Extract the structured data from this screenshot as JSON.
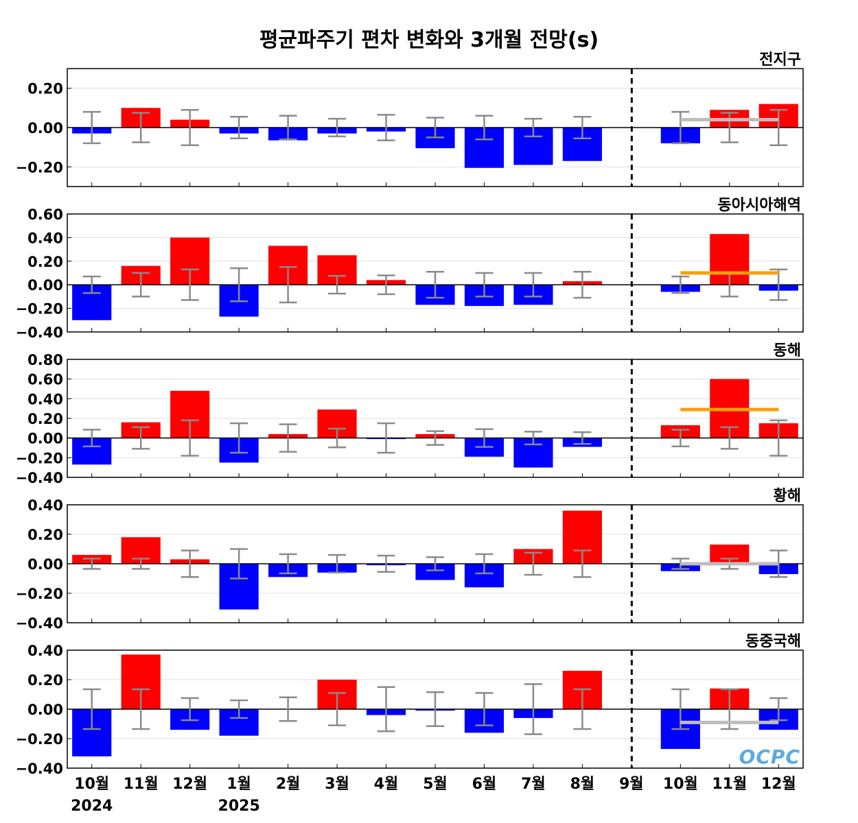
{
  "chart_data": {
    "type": "bar",
    "title": "평균파주기 편차 변화와 3개월 전망(s)",
    "categories": [
      "10월",
      "11월",
      "12월",
      "1월",
      "2월",
      "3월",
      "4월",
      "5월",
      "6월",
      "7월",
      "8월",
      "9월",
      "10월",
      "11월",
      "12월"
    ],
    "year_labels": [
      {
        "index": 0,
        "text": "2024"
      },
      {
        "index": 3,
        "text": "2025"
      }
    ],
    "forecast_divider_after_index": 11,
    "colors": {
      "positive": "#ff0000",
      "negative": "#0000ff",
      "errorbar": "#8a8a8a",
      "gray_line": "#bdbdbd",
      "orange_line": "#f5a010",
      "divider": "#000000"
    },
    "panels": [
      {
        "name": "전지구",
        "ylim": [
          -0.3,
          0.3
        ],
        "yticks": [
          0.2,
          0.0,
          -0.2
        ],
        "ytick_labels": [
          "0.20",
          "0.00",
          "−0.20"
        ],
        "values": [
          -0.03,
          0.1,
          0.04,
          -0.03,
          -0.065,
          -0.03,
          -0.02,
          -0.105,
          -0.205,
          -0.19,
          -0.17,
          0.0,
          -0.08,
          0.09,
          0.12
        ],
        "error": [
          0.08,
          0.075,
          0.09,
          0.055,
          0.06,
          0.045,
          0.065,
          0.05,
          0.06,
          0.045,
          0.055,
          0.0,
          0.08,
          0.075,
          0.09
        ],
        "forecast_line": {
          "value": 0.04,
          "from_index": 12,
          "to_index": 14,
          "color": "gray"
        }
      },
      {
        "name": "동아시아해역",
        "ylim": [
          -0.4,
          0.6
        ],
        "yticks": [
          0.6,
          0.4,
          0.2,
          0.0,
          -0.2,
          -0.4
        ],
        "ytick_labels": [
          "0.60",
          "0.40",
          "0.20",
          "0.00",
          "−0.20",
          "−0.40"
        ],
        "values": [
          -0.3,
          0.16,
          0.4,
          -0.27,
          0.33,
          0.25,
          0.04,
          -0.17,
          -0.18,
          -0.17,
          0.03,
          0.0,
          -0.06,
          0.43,
          -0.05
        ],
        "error": [
          0.07,
          0.1,
          0.13,
          0.14,
          0.15,
          0.075,
          0.08,
          0.11,
          0.1,
          0.1,
          0.11,
          0.0,
          0.07,
          0.1,
          0.13
        ],
        "forecast_line": {
          "value": 0.1,
          "from_index": 12,
          "to_index": 14,
          "color": "orange"
        }
      },
      {
        "name": "동해",
        "ylim": [
          -0.4,
          0.8
        ],
        "yticks": [
          0.8,
          0.6,
          0.4,
          0.2,
          0.0,
          -0.2,
          -0.4
        ],
        "ytick_labels": [
          "0.80",
          "0.60",
          "0.40",
          "0.20",
          "0.00",
          "−0.20",
          "−0.40"
        ],
        "values": [
          -0.27,
          0.16,
          0.48,
          -0.25,
          0.04,
          0.29,
          -0.01,
          0.04,
          -0.19,
          -0.3,
          -0.09,
          0.0,
          0.13,
          0.6,
          0.15
        ],
        "error": [
          0.085,
          0.11,
          0.18,
          0.15,
          0.14,
          0.095,
          0.15,
          0.07,
          0.09,
          0.065,
          0.06,
          0.0,
          0.085,
          0.11,
          0.18
        ],
        "forecast_line": {
          "value": 0.29,
          "from_index": 12,
          "to_index": 14,
          "color": "orange"
        }
      },
      {
        "name": "황해",
        "ylim": [
          -0.4,
          0.4
        ],
        "yticks": [
          0.4,
          0.2,
          0.0,
          -0.2,
          -0.4
        ],
        "ytick_labels": [
          "0.40",
          "0.20",
          "0.00",
          "−0.20",
          "−0.40"
        ],
        "values": [
          0.06,
          0.18,
          0.03,
          -0.31,
          -0.09,
          -0.06,
          -0.01,
          -0.11,
          -0.16,
          0.1,
          0.36,
          0.0,
          -0.05,
          0.13,
          -0.07
        ],
        "error": [
          0.035,
          0.035,
          0.09,
          0.1,
          0.065,
          0.06,
          0.055,
          0.045,
          0.065,
          0.075,
          0.09,
          0.0,
          0.035,
          0.035,
          0.09
        ],
        "forecast_line": {
          "value": 0.0,
          "from_index": 12,
          "to_index": 14,
          "color": "gray"
        }
      },
      {
        "name": "동중국해",
        "ylim": [
          -0.4,
          0.4
        ],
        "yticks": [
          0.4,
          0.2,
          0.0,
          -0.2,
          -0.4
        ],
        "ytick_labels": [
          "0.40",
          "0.20",
          "0.00",
          "−0.20",
          "−0.40"
        ],
        "values": [
          -0.32,
          0.37,
          -0.14,
          -0.18,
          0.0,
          0.2,
          -0.04,
          -0.01,
          -0.16,
          -0.06,
          0.26,
          0.0,
          -0.27,
          0.14,
          -0.14
        ],
        "error": [
          0.135,
          0.135,
          0.075,
          0.06,
          0.08,
          0.11,
          0.15,
          0.115,
          0.11,
          0.17,
          0.135,
          0.0,
          0.135,
          0.135,
          0.075
        ],
        "forecast_line": {
          "value": -0.09,
          "from_index": 12,
          "to_index": 14,
          "color": "gray"
        }
      }
    ]
  },
  "logo_text": "OCPC"
}
